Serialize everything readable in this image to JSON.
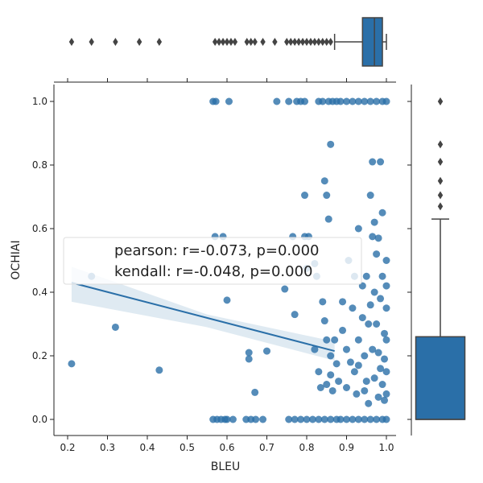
{
  "chart_data": {
    "type": "scatter",
    "subtype": "jointplot",
    "xlabel": "BLEU",
    "ylabel": "OCHIAI",
    "xlim": [
      0.17,
      1.02
    ],
    "ylim": [
      -0.05,
      1.05
    ],
    "x_ticks": [
      "0.2",
      "0.3",
      "0.4",
      "0.5",
      "0.6",
      "0.7",
      "0.8",
      "0.9",
      "1.0"
    ],
    "y_ticks": [
      "0.0",
      "0.2",
      "0.4",
      "0.6",
      "0.8",
      "1.0"
    ],
    "grid": false,
    "color": "#2a6fa8",
    "annotation": {
      "lines": [
        "pearson: r=-0.073, p=0.000",
        "kendall: r=-0.048, p=0.000"
      ]
    },
    "regression": {
      "x": [
        0.21,
        0.87
      ],
      "y": [
        0.43,
        0.215
      ]
    },
    "points": [
      [
        0.21,
        0.175
      ],
      [
        0.26,
        0.45
      ],
      [
        0.32,
        0.29
      ],
      [
        0.43,
        0.155
      ],
      [
        0.565,
        1.0
      ],
      [
        0.572,
        1.0
      ],
      [
        0.605,
        1.0
      ],
      [
        0.57,
        0.575
      ],
      [
        0.59,
        0.575
      ],
      [
        0.6,
        0.375
      ],
      [
        0.595,
        0.0
      ],
      [
        0.565,
        0.0
      ],
      [
        0.575,
        0.0
      ],
      [
        0.585,
        0.0
      ],
      [
        0.6,
        0.0
      ],
      [
        0.615,
        0.0
      ],
      [
        0.648,
        0.0
      ],
      [
        0.66,
        0.0
      ],
      [
        0.672,
        0.0
      ],
      [
        0.69,
        0.0
      ],
      [
        0.655,
        0.21
      ],
      [
        0.655,
        0.19
      ],
      [
        0.67,
        0.085
      ],
      [
        0.7,
        0.215
      ],
      [
        0.725,
        1.0
      ],
      [
        0.755,
        1.0
      ],
      [
        0.775,
        1.0
      ],
      [
        0.785,
        1.0
      ],
      [
        0.795,
        1.0
      ],
      [
        0.765,
        0.575
      ],
      [
        0.745,
        0.41
      ],
      [
        0.77,
        0.33
      ],
      [
        0.795,
        0.705
      ],
      [
        0.795,
        0.575
      ],
      [
        0.8,
        0.475
      ],
      [
        0.805,
        0.575
      ],
      [
        0.755,
        0.0
      ],
      [
        0.77,
        0.0
      ],
      [
        0.785,
        0.0
      ],
      [
        0.8,
        0.0
      ],
      [
        0.815,
        0.0
      ],
      [
        0.83,
        1.0
      ],
      [
        0.84,
        1.0
      ],
      [
        0.855,
        1.0
      ],
      [
        0.865,
        1.0
      ],
      [
        0.875,
        1.0
      ],
      [
        0.845,
        0.75
      ],
      [
        0.85,
        0.705
      ],
      [
        0.86,
        0.865
      ],
      [
        0.855,
        0.63
      ],
      [
        0.82,
        0.49
      ],
      [
        0.825,
        0.45
      ],
      [
        0.84,
        0.37
      ],
      [
        0.845,
        0.31
      ],
      [
        0.85,
        0.25
      ],
      [
        0.86,
        0.2
      ],
      [
        0.82,
        0.22
      ],
      [
        0.83,
        0.15
      ],
      [
        0.835,
        0.1
      ],
      [
        0.85,
        0.11
      ],
      [
        0.865,
        0.09
      ],
      [
        0.83,
        0.0
      ],
      [
        0.845,
        0.0
      ],
      [
        0.86,
        0.0
      ],
      [
        0.875,
        0.0
      ],
      [
        0.885,
        0.0
      ],
      [
        0.9,
        0.0
      ],
      [
        0.915,
        0.0
      ],
      [
        0.93,
        0.0
      ],
      [
        0.945,
        0.0
      ],
      [
        0.96,
        0.0
      ],
      [
        0.975,
        0.0
      ],
      [
        0.99,
        0.0
      ],
      [
        1.0,
        0.0
      ],
      [
        0.885,
        1.0
      ],
      [
        0.9,
        1.0
      ],
      [
        0.915,
        1.0
      ],
      [
        0.93,
        1.0
      ],
      [
        0.945,
        1.0
      ],
      [
        0.96,
        1.0
      ],
      [
        0.975,
        1.0
      ],
      [
        0.99,
        1.0
      ],
      [
        1.0,
        1.0
      ],
      [
        0.905,
        0.5
      ],
      [
        0.92,
        0.45
      ],
      [
        0.93,
        0.6
      ],
      [
        0.915,
        0.35
      ],
      [
        0.89,
        0.28
      ],
      [
        0.9,
        0.22
      ],
      [
        0.91,
        0.18
      ],
      [
        0.92,
        0.15
      ],
      [
        0.93,
        0.25
      ],
      [
        0.94,
        0.32
      ],
      [
        0.945,
        0.2
      ],
      [
        0.95,
        0.12
      ],
      [
        0.955,
        0.05
      ],
      [
        0.96,
        0.705
      ],
      [
        0.965,
        0.575
      ],
      [
        0.97,
        0.4
      ],
      [
        0.975,
        0.3
      ],
      [
        0.98,
        0.21
      ],
      [
        0.985,
        0.16
      ],
      [
        0.99,
        0.11
      ],
      [
        0.995,
        0.06
      ],
      [
        0.965,
        0.81
      ],
      [
        0.985,
        0.81
      ],
      [
        0.97,
        0.62
      ],
      [
        0.99,
        0.45
      ],
      [
        1.0,
        0.35
      ],
      [
        1.0,
        0.25
      ],
      [
        1.0,
        0.15
      ],
      [
        1.0,
        0.08
      ],
      [
        0.96,
        0.36
      ],
      [
        0.975,
        0.52
      ],
      [
        0.985,
        0.38
      ],
      [
        0.995,
        0.27
      ],
      [
        0.94,
        0.42
      ],
      [
        0.955,
        0.3
      ],
      [
        0.95,
        0.45
      ],
      [
        0.965,
        0.22
      ],
      [
        0.98,
        0.57
      ],
      [
        0.99,
        0.65
      ],
      [
        1.0,
        0.5
      ],
      [
        1.0,
        0.42
      ],
      [
        0.93,
        0.17
      ],
      [
        0.925,
        0.08
      ],
      [
        0.9,
        0.1
      ],
      [
        0.88,
        0.12
      ],
      [
        0.87,
        0.25
      ],
      [
        0.89,
        0.37
      ],
      [
        0.875,
        0.175
      ],
      [
        0.86,
        0.14
      ],
      [
        0.945,
        0.09
      ],
      [
        0.97,
        0.13
      ],
      [
        0.98,
        0.07
      ],
      [
        0.995,
        0.19
      ]
    ],
    "top_boxplot": {
      "whisker_low": 0.87,
      "q1": 0.94,
      "median": 0.97,
      "q3": 0.99,
      "whisker_high": 1.0,
      "outliers": [
        0.21,
        0.26,
        0.32,
        0.38,
        0.43,
        0.57,
        0.58,
        0.59,
        0.6,
        0.61,
        0.62,
        0.65,
        0.66,
        0.67,
        0.69,
        0.72,
        0.75,
        0.76,
        0.77,
        0.78,
        0.79,
        0.8,
        0.81,
        0.82,
        0.83,
        0.84,
        0.85,
        0.86
      ]
    },
    "right_boxplot": {
      "whisker_low": 0.0,
      "q1": 0.0,
      "median": 0.0,
      "q3": 0.26,
      "whisker_high": 0.63,
      "outliers": [
        0.67,
        0.705,
        0.75,
        0.81,
        0.865,
        1.0
      ]
    }
  }
}
